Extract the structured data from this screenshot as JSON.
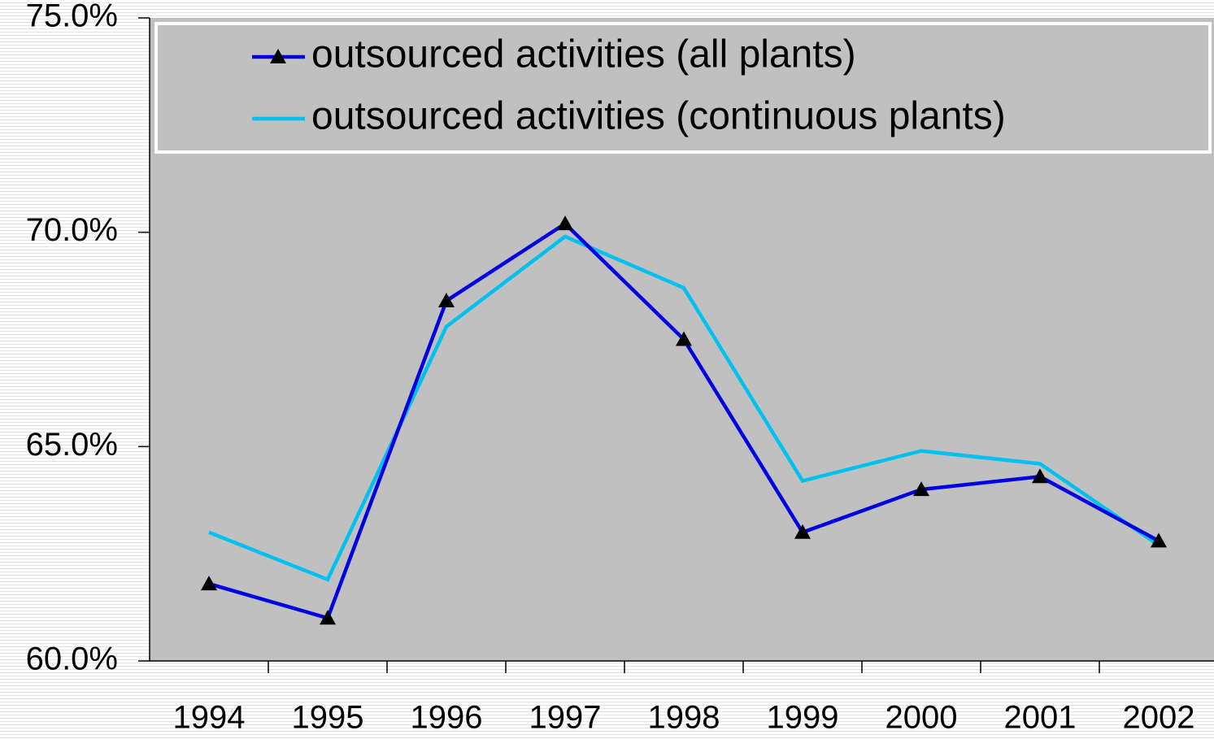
{
  "chart_data": {
    "type": "line",
    "categories": [
      "1994",
      "1995",
      "1996",
      "1997",
      "1998",
      "1999",
      "2000",
      "2001",
      "2002"
    ],
    "series": [
      {
        "name": "outsourced activities (all plants)",
        "color": "#0000e0",
        "marker": "triangle",
        "values": [
          61.8,
          61.0,
          68.4,
          70.2,
          67.5,
          63.0,
          64.0,
          64.3,
          62.8
        ]
      },
      {
        "name": "outsourced activities (continuous plants)",
        "color": "#00c0f0",
        "values": [
          63.0,
          61.9,
          67.8,
          69.9,
          68.7,
          64.2,
          64.9,
          64.6,
          62.7
        ]
      }
    ],
    "ylim": [
      60,
      75
    ],
    "yticks": [
      {
        "value": 60,
        "label": "60.0%"
      },
      {
        "value": 65,
        "label": "65.0%"
      },
      {
        "value": 70,
        "label": "70.0%"
      },
      {
        "value": 75,
        "label": "75.0%"
      }
    ],
    "legend": "top"
  }
}
